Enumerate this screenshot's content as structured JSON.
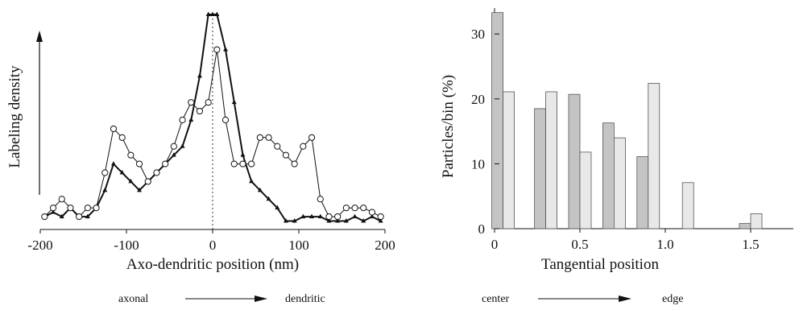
{
  "chart_data": [
    {
      "type": "line",
      "xlabel": "Axo-dendritic position (nm)",
      "ylabel": "Labeling density",
      "xlim": [
        -200,
        200
      ],
      "xticks": [
        "-200",
        "-100",
        "0",
        "100",
        "200"
      ],
      "y_ticks_shown": false,
      "reference_line": {
        "x": 0,
        "style": "dotted"
      },
      "direction": {
        "left": "axonal",
        "right": "dendritic"
      },
      "series": [
        {
          "marker": "filled-triangle",
          "x": [
            -195,
            -185,
            -175,
            -165,
            -155,
            -145,
            -135,
            -125,
            -115,
            -105,
            -95,
            -85,
            -75,
            -65,
            -55,
            -45,
            -35,
            -25,
            -15,
            -5,
            0,
            5,
            15,
            25,
            35,
            45,
            55,
            65,
            75,
            85,
            95,
            105,
            115,
            125,
            135,
            145,
            155,
            165,
            175,
            185,
            195
          ],
          "values": [
            1,
            1.5,
            1,
            2,
            1,
            1,
            2,
            4,
            7,
            6,
            5,
            4,
            5,
            6,
            7,
            8,
            9,
            12,
            17,
            24,
            24,
            24,
            20,
            14,
            8,
            5,
            4,
            3,
            2,
            0.5,
            0.5,
            1,
            1,
            1,
            0.5,
            0.5,
            0.5,
            1,
            0.5,
            1,
            0.5
          ]
        },
        {
          "marker": "open-circle",
          "x": [
            -195,
            -185,
            -175,
            -165,
            -155,
            -145,
            -135,
            -125,
            -115,
            -105,
            -95,
            -85,
            -75,
            -65,
            -55,
            -45,
            -35,
            -25,
            -15,
            -5,
            5,
            15,
            25,
            35,
            45,
            55,
            65,
            75,
            85,
            95,
            105,
            115,
            125,
            135,
            145,
            155,
            165,
            175,
            185,
            195
          ],
          "values": [
            1,
            2,
            3,
            2,
            1,
            2,
            2,
            6,
            11,
            10,
            8,
            7,
            5,
            6,
            7,
            9,
            12,
            14,
            13,
            14,
            20,
            12,
            7,
            7,
            7,
            10,
            10,
            9,
            8,
            7,
            9,
            10,
            3,
            1,
            1,
            2,
            2,
            2,
            1.5,
            1
          ]
        }
      ]
    },
    {
      "type": "bar",
      "xlabel": "Tangential position",
      "ylabel": "Particles/bin (%)",
      "xlim": [
        0,
        1.75
      ],
      "ylim": [
        0,
        34
      ],
      "xticks": [
        "0",
        "0.5",
        "1.0",
        "1.5"
      ],
      "yticks": [
        "0",
        "10",
        "20",
        "30"
      ],
      "direction": {
        "left": "center",
        "right": "edge"
      },
      "x": [
        0.05,
        0.3,
        0.5,
        0.7,
        0.9,
        1.1,
        1.5
      ],
      "series": [
        {
          "color": "#c4c4c4",
          "values": [
            33.3,
            18.5,
            20.7,
            16.3,
            11.1,
            0,
            0.8
          ]
        },
        {
          "color": "#e8e8e8",
          "values": [
            21.1,
            21.1,
            11.8,
            14.0,
            22.4,
            7.1,
            2.3
          ]
        }
      ]
    }
  ]
}
